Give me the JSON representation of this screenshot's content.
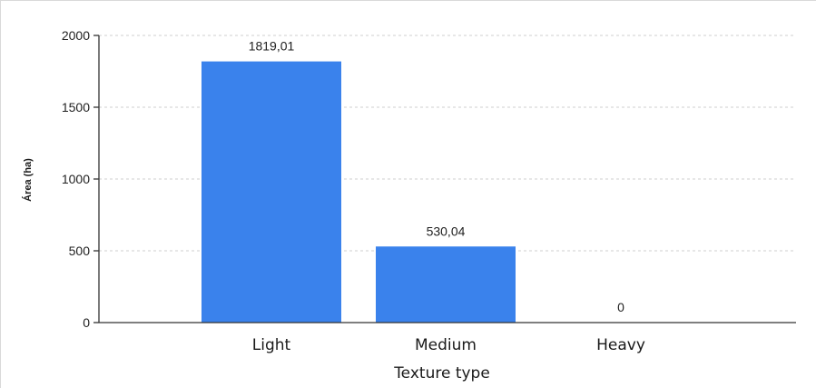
{
  "chart_data": {
    "type": "bar",
    "categories": [
      "Light",
      "Medium",
      "Heavy"
    ],
    "values": [
      1819.01,
      530.04,
      0
    ],
    "data_labels": [
      "1819,01",
      "530,04",
      "0"
    ],
    "xlabel": "Texture type",
    "ylabel": "Área (ha)",
    "ylim": [
      0,
      2000
    ],
    "yticks": [
      0,
      500,
      1000,
      1500,
      2000
    ],
    "grid": true,
    "bar_color": "#3a82ec"
  }
}
